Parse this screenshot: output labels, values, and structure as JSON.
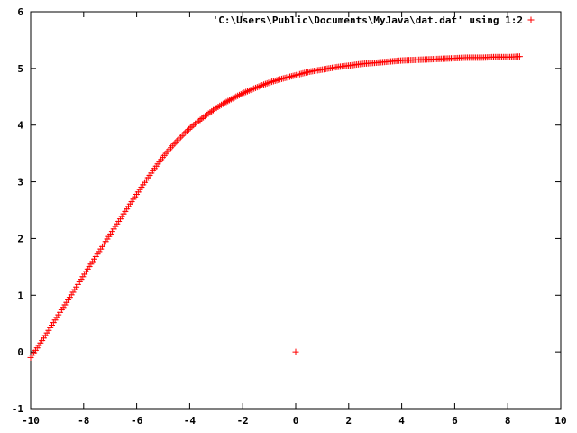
{
  "chart_data": {
    "type": "scatter",
    "title": "",
    "xlabel": "",
    "ylabel": "",
    "xlim": [
      -10,
      10
    ],
    "ylim": [
      -1,
      6
    ],
    "x_ticks": [
      "-10",
      "-8",
      "-6",
      "-4",
      "-2",
      "0",
      "2",
      "4",
      "6",
      "8",
      "10"
    ],
    "y_ticks": [
      "-1",
      "0",
      "1",
      "2",
      "3",
      "4",
      "5",
      "6"
    ],
    "grid": false,
    "legend_position": "top-right",
    "marker": "+",
    "series": [
      {
        "name": "'C:\\Users\\Public\\Documents\\MyJava\\dat.dat' using 1:2",
        "color": "#ff0000",
        "x_range": [
          -10.0,
          8.45
        ],
        "points": [
          [
            -10.0,
            -0.1
          ],
          [
            -9.5,
            0.25
          ],
          [
            -9.0,
            0.62
          ],
          [
            -8.5,
            0.98
          ],
          [
            -8.0,
            1.35
          ],
          [
            -7.5,
            1.71
          ],
          [
            -7.0,
            2.07
          ],
          [
            -6.5,
            2.43
          ],
          [
            -6.0,
            2.78
          ],
          [
            -5.5,
            3.12
          ],
          [
            -5.0,
            3.44
          ],
          [
            -4.5,
            3.71
          ],
          [
            -4.0,
            3.94
          ],
          [
            -3.5,
            4.13
          ],
          [
            -3.0,
            4.3
          ],
          [
            -2.5,
            4.44
          ],
          [
            -2.0,
            4.56
          ],
          [
            -1.5,
            4.66
          ],
          [
            -1.0,
            4.75
          ],
          [
            -0.5,
            4.82
          ],
          [
            0.0,
            4.88
          ],
          [
            0.5,
            4.94
          ],
          [
            1.0,
            4.98
          ],
          [
            1.5,
            5.02
          ],
          [
            2.0,
            5.05
          ],
          [
            2.5,
            5.08
          ],
          [
            3.0,
            5.1
          ],
          [
            3.5,
            5.12
          ],
          [
            4.0,
            5.14
          ],
          [
            4.5,
            5.15
          ],
          [
            5.0,
            5.16
          ],
          [
            5.5,
            5.17
          ],
          [
            6.0,
            5.18
          ],
          [
            6.5,
            5.19
          ],
          [
            7.0,
            5.19
          ],
          [
            7.5,
            5.2
          ],
          [
            8.0,
            5.2
          ],
          [
            8.45,
            5.21
          ]
        ],
        "outliers": [
          [
            0.0,
            0.0
          ]
        ]
      }
    ]
  }
}
